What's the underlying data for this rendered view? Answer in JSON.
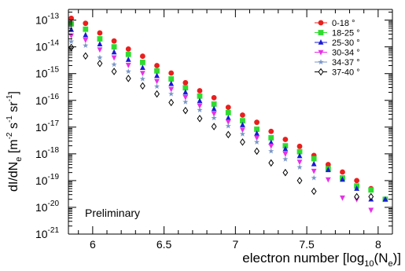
{
  "chart_data": {
    "type": "scatter",
    "title": "",
    "xlabel_main": "electron number [log",
    "xlabel_sub": "10",
    "xlabel_mid": "(N",
    "xlabel_sub2": "e",
    "xlabel_end": ")]",
    "ylabel_main": "dI/dN",
    "ylabel_sub_e": "e",
    "ylabel_units_open": " [m",
    "ylabel_sup_m": "-2",
    "ylabel_units_s": " s",
    "ylabel_sup_s": "-1",
    "ylabel_units_sr": " sr",
    "ylabel_sup_sr": "-1",
    "ylabel_units_close": "]",
    "annotation": "Preliminary",
    "xlim": [
      5.83,
      8.1
    ],
    "ylog": true,
    "ylim_exp": [
      -21,
      -12.6
    ],
    "x_ticks": [
      6,
      6.5,
      7,
      7.5,
      8
    ],
    "x_tick_labels": [
      "6",
      "6.5",
      "7",
      "7.5",
      "8"
    ],
    "y_tick_exps": [
      -21,
      -20,
      -19,
      -18,
      -17,
      -16,
      -15,
      -14,
      -13
    ],
    "y_tick_base": "10",
    "y_tick_sups": [
      "-21",
      "-20",
      "-19",
      "-18",
      "-17",
      "-16",
      "-15",
      "-14",
      "-13"
    ],
    "grid": false,
    "legend_position": "top-right",
    "series": [
      {
        "name": "0-18 °",
        "color": "#e8201e",
        "marker": "circle",
        "x": [
          5.85,
          5.95,
          6.05,
          6.15,
          6.25,
          6.35,
          6.45,
          6.55,
          6.65,
          6.75,
          6.85,
          6.95,
          7.05,
          7.15,
          7.25,
          7.35,
          7.45,
          7.55,
          7.65,
          7.75,
          7.85,
          7.95,
          8.05
        ],
        "exp": [
          -12.93,
          -13.12,
          -13.48,
          -13.78,
          -14.08,
          -14.35,
          -14.7,
          -14.98,
          -15.34,
          -15.64,
          -15.9,
          -16.26,
          -16.55,
          -16.82,
          -17.16,
          -17.46,
          -17.72,
          -18.06,
          -18.4,
          -18.68,
          -19.0,
          -19.3,
          -19.7
        ]
      },
      {
        "name": "18-25 °",
        "color": "#2edc2e",
        "marker": "square",
        "x": [
          5.85,
          5.95,
          6.05,
          6.15,
          6.25,
          6.35,
          6.45,
          6.55,
          6.65,
          6.75,
          6.85,
          6.95,
          7.05,
          7.15,
          7.25,
          7.35,
          7.45,
          7.55,
          7.65,
          7.75,
          7.85,
          7.95,
          8.05
        ],
        "exp": [
          -13.14,
          -13.34,
          -13.7,
          -14.0,
          -14.28,
          -14.58,
          -14.9,
          -15.2,
          -15.53,
          -15.84,
          -16.14,
          -16.46,
          -16.76,
          -17.08,
          -17.4,
          -17.7,
          -17.92,
          -18.18,
          -18.56,
          -18.9,
          -19.2,
          -19.35,
          -19.7
        ]
      },
      {
        "name": "25-30 °",
        "color": "#1a1ad6",
        "marker": "triangle-up",
        "x": [
          5.85,
          5.95,
          6.05,
          6.15,
          6.25,
          6.35,
          6.45,
          6.55,
          6.65,
          6.75,
          6.85,
          6.95,
          7.05,
          7.15,
          7.25,
          7.35,
          7.45,
          7.55,
          7.65,
          7.75,
          7.85,
          7.95,
          8.05
        ],
        "exp": [
          -13.36,
          -13.56,
          -13.9,
          -14.2,
          -14.48,
          -14.78,
          -15.08,
          -15.38,
          -15.7,
          -16.02,
          -16.32,
          -16.66,
          -16.92,
          -17.24,
          -17.58,
          -17.82,
          -18.08,
          -18.38,
          -18.6,
          -18.96,
          -19.3,
          -19.7,
          -19.7
        ]
      },
      {
        "name": "30-34 °",
        "color": "#e632e6",
        "marker": "triangle-down",
        "x": [
          5.85,
          5.95,
          6.05,
          6.15,
          6.25,
          6.35,
          6.45,
          6.55,
          6.65,
          6.75,
          6.85,
          6.95,
          7.05,
          7.15,
          7.25,
          7.35,
          7.45,
          7.55,
          7.65,
          7.75,
          7.85,
          7.95
        ],
        "exp": [
          -13.58,
          -13.74,
          -14.1,
          -14.4,
          -14.68,
          -14.98,
          -15.28,
          -15.58,
          -15.88,
          -16.2,
          -16.5,
          -16.8,
          -17.1,
          -17.4,
          -17.7,
          -18.0,
          -18.3,
          -18.64,
          -18.96,
          -19.64,
          -19.7,
          -20.1
        ]
      },
      {
        "name": "34-37 °",
        "color": "#7a96c6",
        "marker": "star",
        "x": [
          5.85,
          5.95,
          6.05,
          6.15,
          6.25,
          6.35,
          6.45,
          6.55,
          6.65,
          6.75,
          6.85,
          6.95,
          7.05,
          7.15,
          7.25,
          7.35,
          7.45,
          7.55
        ],
        "exp": [
          -13.8,
          -13.95,
          -14.4,
          -14.66,
          -14.92,
          -15.2,
          -15.48,
          -15.76,
          -16.06,
          -16.36,
          -16.66,
          -16.96,
          -17.26,
          -17.56,
          -17.9,
          -18.2,
          -18.5,
          -18.9
        ]
      },
      {
        "name": "37-40 °",
        "color": "#000000",
        "marker": "diamond-open",
        "x": [
          5.85,
          5.95,
          6.05,
          6.15,
          6.25,
          6.35,
          6.45,
          6.55,
          6.65,
          6.75,
          6.85,
          6.95,
          7.05,
          7.15,
          7.25,
          7.35,
          7.45,
          7.55,
          7.85,
          7.95
        ],
        "exp": [
          -14.02,
          -14.34,
          -14.62,
          -14.92,
          -15.18,
          -15.46,
          -15.76,
          -16.08,
          -16.38,
          -16.68,
          -16.98,
          -17.28,
          -17.56,
          -17.9,
          -18.34,
          -18.7,
          -19.0,
          -19.4,
          -19.6,
          -19.6
        ]
      }
    ]
  }
}
